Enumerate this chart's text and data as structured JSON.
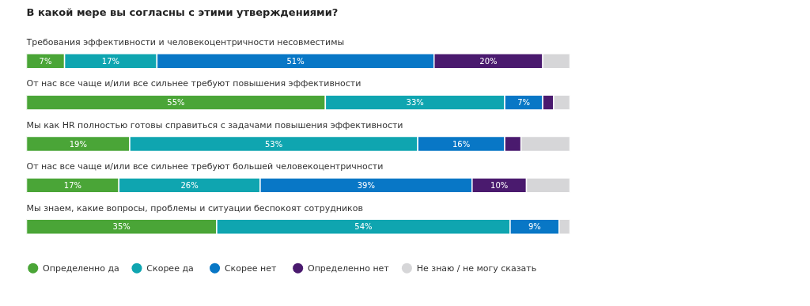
{
  "chart_data": {
    "type": "bar",
    "orientation": "horizontal",
    "stacked": true,
    "title": "В какой мере вы согласны с этими утверждениями?",
    "categories": [
      "Требования эффективности и человекоцентричности несовместимы",
      "От нас все чаще и/или все сильнее требуют повышения эффективности",
      "Мы как HR полностью готовы справиться с задачами повышения эффективности",
      "От нас все чаще и/или все сильнее требуют большей человекоцентричности",
      "Мы знаем, какие вопросы, проблемы и ситуации беспокоят сотрудников"
    ],
    "xlim": [
      0,
      100
    ],
    "tick_labels": false,
    "grid": false,
    "legend": "bottom left",
    "marker": "circle",
    "series": [
      {
        "name": "Определенно да",
        "color": "#4aa537",
        "values": [
          7,
          55,
          19,
          17,
          35
        ],
        "value_labels": [
          "7%",
          "55%",
          "19%",
          "17%",
          "35%"
        ]
      },
      {
        "name": "Скорее да",
        "color": "#0fa5b0",
        "values": [
          17,
          33,
          53,
          26,
          54
        ],
        "value_labels": [
          "17%",
          "33%",
          "53%",
          "26%",
          "54%"
        ]
      },
      {
        "name": "Скорее нет",
        "color": "#0877c6",
        "values": [
          51,
          7,
          16,
          39,
          9
        ],
        "value_labels": [
          "51%",
          "7%",
          "16%",
          "39%",
          "9%"
        ]
      },
      {
        "name": "Определенно нет",
        "color": "#4a1a6e",
        "values": [
          20,
          2,
          3,
          10,
          0
        ],
        "value_labels": [
          "20%",
          null,
          null,
          "10%",
          null
        ]
      },
      {
        "name": "Не знаю / не могу сказать",
        "color": "#d6d6d8",
        "values": [
          5,
          3,
          9,
          8,
          2
        ],
        "value_labels": [
          null,
          null,
          null,
          null,
          null
        ]
      }
    ]
  }
}
